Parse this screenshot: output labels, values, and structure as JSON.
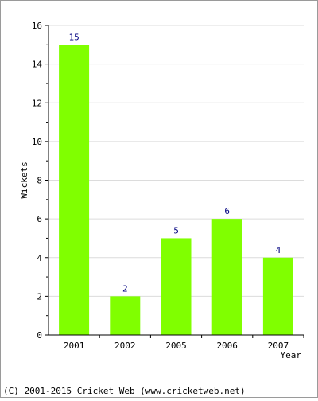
{
  "chart_data": {
    "type": "bar",
    "categories": [
      "2001",
      "2002",
      "2005",
      "2006",
      "2007"
    ],
    "values": [
      15,
      2,
      5,
      6,
      4
    ],
    "title": "",
    "xlabel": "Year",
    "ylabel": "Wickets",
    "ylim": [
      0,
      16
    ],
    "yticks": [
      0,
      2,
      4,
      6,
      8,
      10,
      12,
      14,
      16
    ],
    "grid": true,
    "data_labels": true,
    "bar_color": "#80ff00",
    "label_color": "#000080"
  },
  "footer": {
    "copyright": "(C) 2001-2015 Cricket Web (www.cricketweb.net)"
  }
}
